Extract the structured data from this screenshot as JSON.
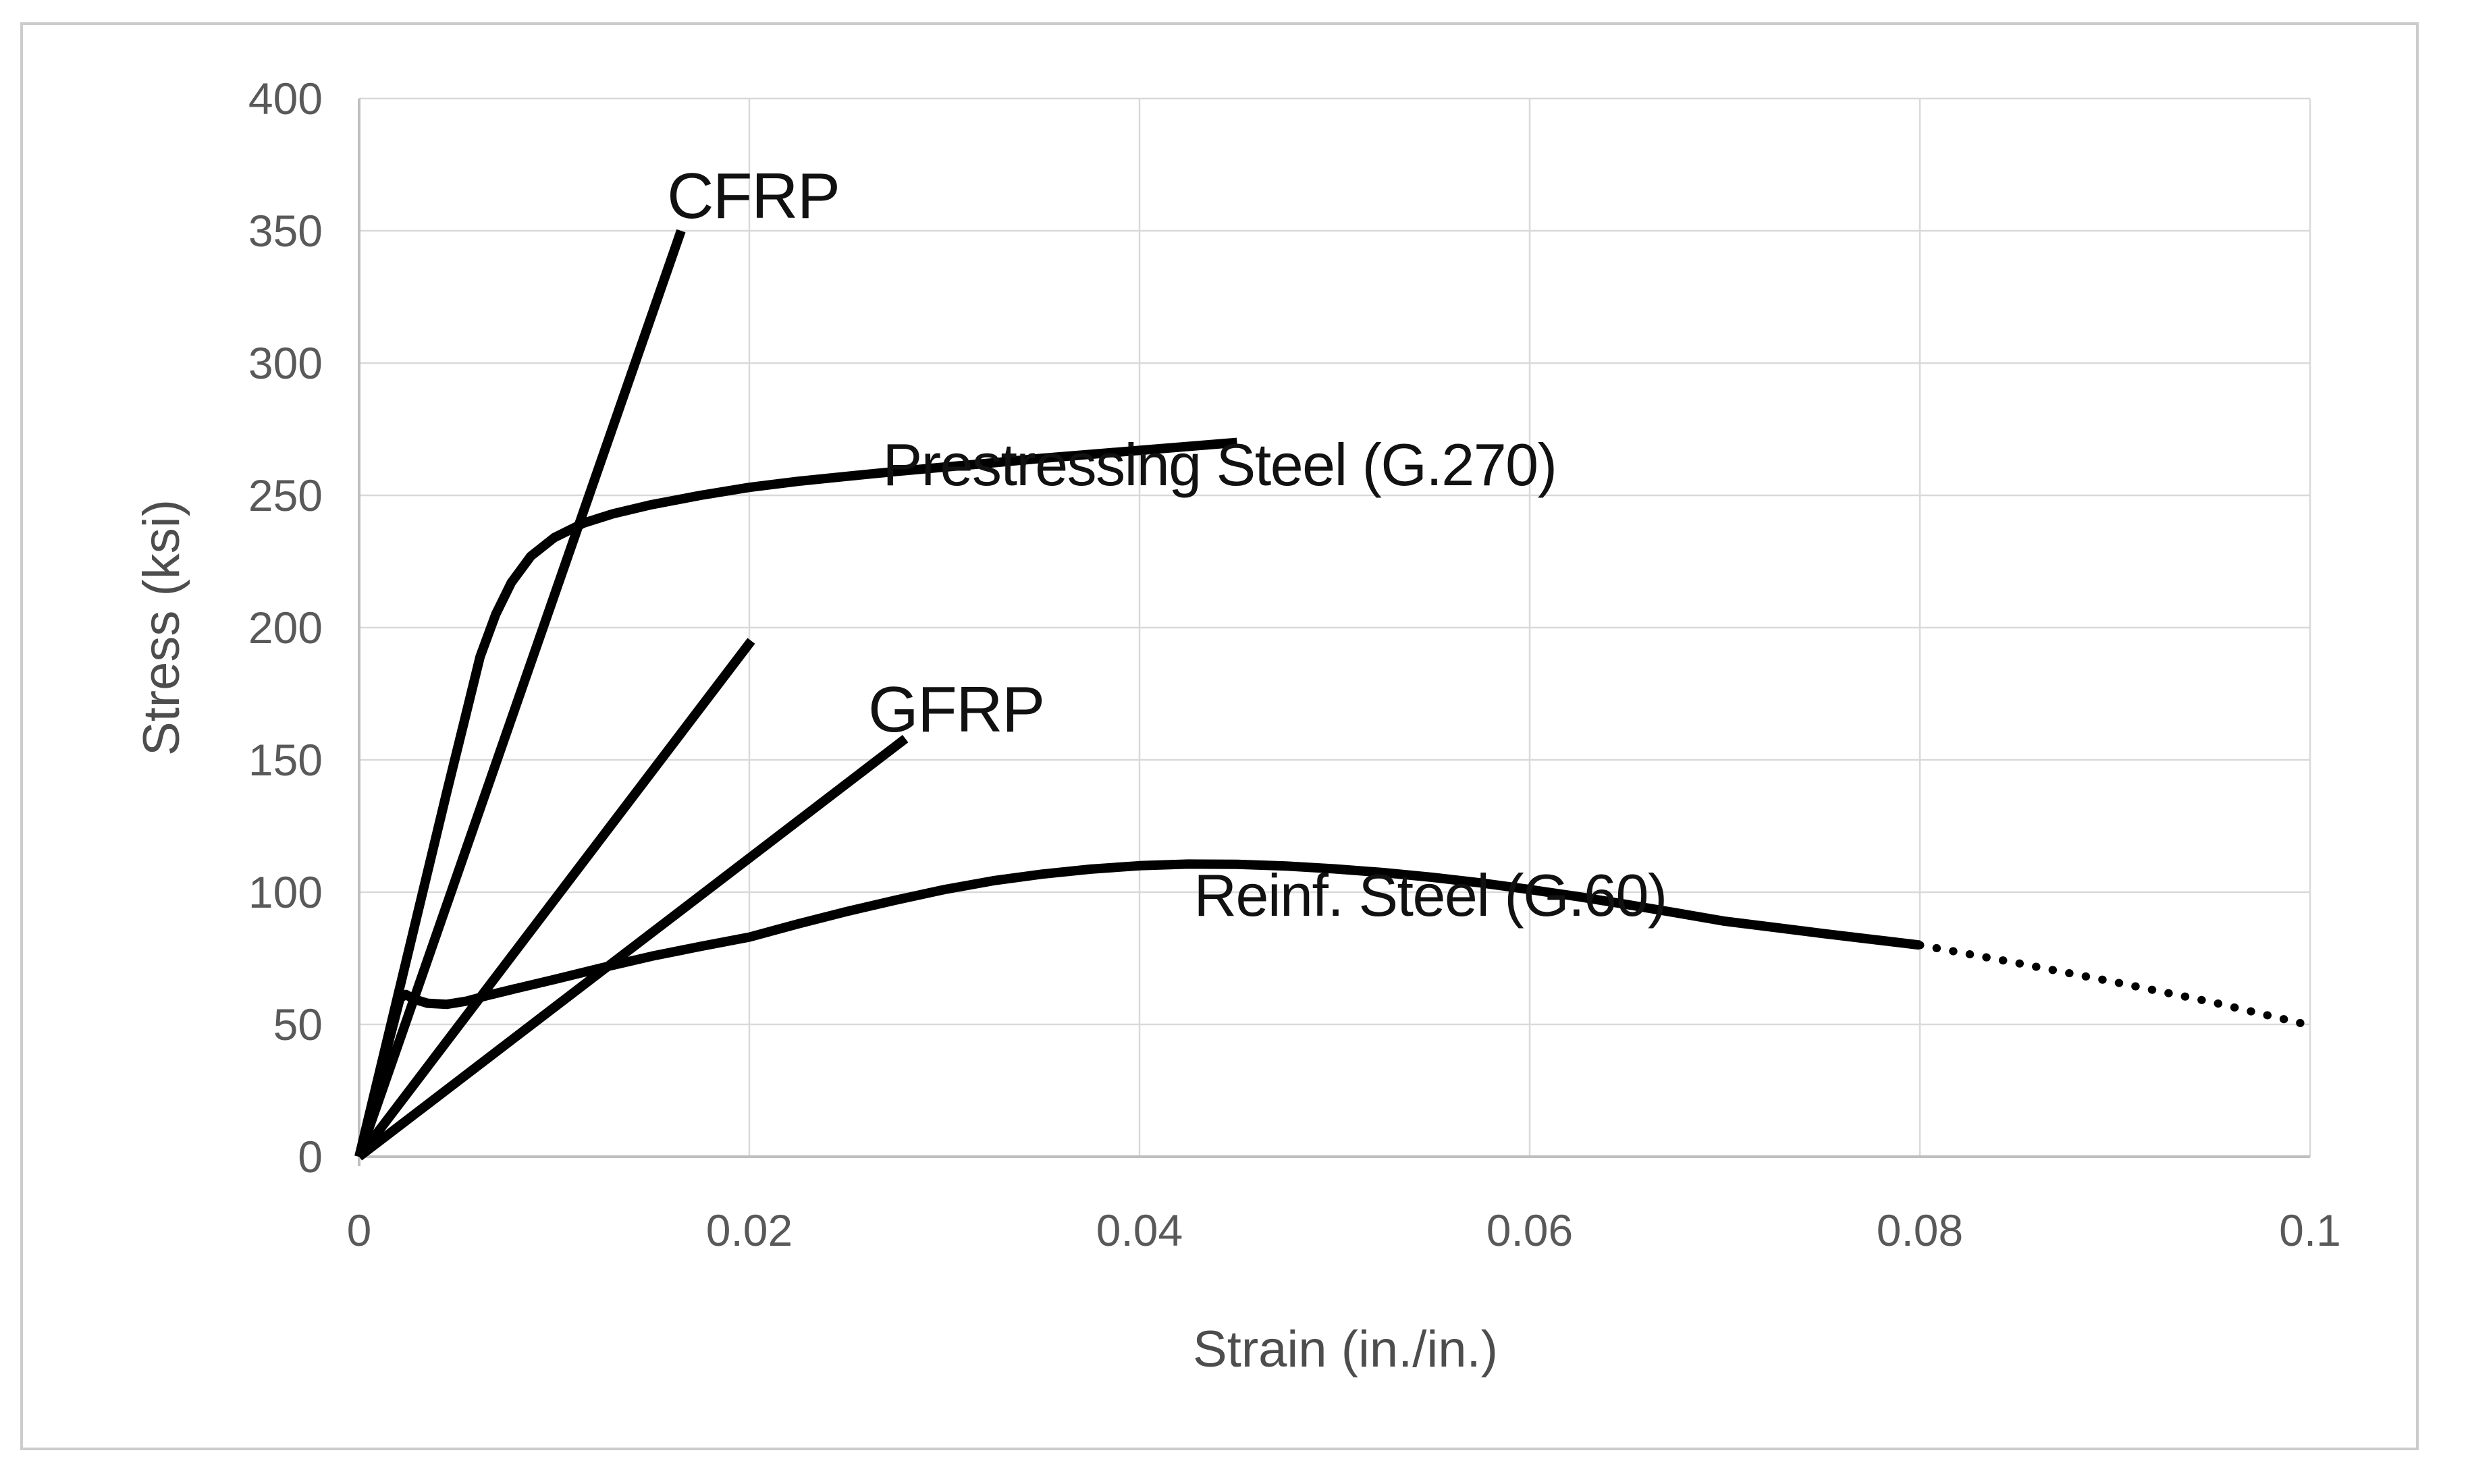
{
  "figure": {
    "background": "#ffffff",
    "frame_color": "#cccccc",
    "grid_color": "#d9d9d9",
    "axis_color": "#bfbfbf",
    "curve_color": "#000000",
    "tick_text_color": "#595959",
    "axis_title_color": "#4d4d4d",
    "annotation_text_color": "#111111"
  },
  "chart_data": {
    "type": "line",
    "title": "",
    "xlabel": "Strain (in./in.)",
    "ylabel": "Stress (ksi)",
    "xlim": [
      0,
      0.1
    ],
    "ylim": [
      0,
      400
    ],
    "x_ticks": [
      0,
      0.02,
      0.04,
      0.06,
      0.08,
      0.1
    ],
    "x_tick_labels": [
      "0",
      "0.02",
      "0.04",
      "0.06",
      "0.08",
      "0.1"
    ],
    "y_ticks": [
      0,
      50,
      100,
      150,
      200,
      250,
      300,
      350,
      400
    ],
    "y_tick_labels": [
      "0",
      "50",
      "100",
      "150",
      "200",
      "250",
      "300",
      "350",
      "400"
    ],
    "grid": true,
    "legend_position": "none (series labeled by on-chart annotations)",
    "series": [
      {
        "id": "cfrp",
        "name": "CFRP",
        "line": "solid",
        "points": [
          [
            0,
            0
          ],
          [
            0.0165,
            350
          ]
        ]
      },
      {
        "id": "frp-unlabeled",
        "name": "",
        "line": "solid",
        "points": [
          [
            0,
            0
          ],
          [
            0.0201,
            195
          ]
        ]
      },
      {
        "id": "gfrp",
        "name": "GFRP",
        "line": "solid",
        "points": [
          [
            0,
            0
          ],
          [
            0.028,
            158
          ]
        ]
      },
      {
        "id": "prestressing-steel",
        "name": "Prestressing Steel (G.270)",
        "line": "solid",
        "points": [
          [
            0,
            0
          ],
          [
            0.0045,
            138
          ],
          [
            0.0055,
            168
          ],
          [
            0.0062,
            189
          ],
          [
            0.007,
            205
          ],
          [
            0.0078,
            217
          ],
          [
            0.0088,
            227
          ],
          [
            0.01,
            234
          ],
          [
            0.0115,
            239.5
          ],
          [
            0.013,
            243
          ],
          [
            0.015,
            246.5
          ],
          [
            0.0175,
            250
          ],
          [
            0.02,
            253
          ],
          [
            0.0225,
            255.3
          ],
          [
            0.025,
            257.2
          ],
          [
            0.0275,
            259
          ],
          [
            0.03,
            260.7
          ],
          [
            0.0325,
            262.3
          ],
          [
            0.035,
            264
          ],
          [
            0.0375,
            265.5
          ],
          [
            0.04,
            267
          ],
          [
            0.0425,
            268.5
          ],
          [
            0.045,
            270
          ]
        ]
      },
      {
        "id": "reinf-steel",
        "name": "Reinf. Steel (G.60)",
        "line": "solid",
        "points": [
          [
            0,
            0
          ],
          [
            0.0021,
            60
          ],
          [
            0.0024,
            61.3
          ],
          [
            0.0028,
            59.6
          ],
          [
            0.0035,
            58
          ],
          [
            0.0045,
            57.6
          ],
          [
            0.0055,
            58.8
          ],
          [
            0.0065,
            60.8
          ],
          [
            0.008,
            63.5
          ],
          [
            0.01,
            67
          ],
          [
            0.0125,
            71.5
          ],
          [
            0.015,
            75.8
          ],
          [
            0.0175,
            79.5
          ],
          [
            0.02,
            83
          ],
          [
            0.0225,
            88
          ],
          [
            0.025,
            92.7
          ],
          [
            0.0275,
            97
          ],
          [
            0.03,
            101
          ],
          [
            0.0325,
            104.3
          ],
          [
            0.035,
            106.8
          ],
          [
            0.0375,
            108.7
          ],
          [
            0.04,
            110
          ],
          [
            0.0425,
            110.6
          ],
          [
            0.045,
            110.5
          ],
          [
            0.0475,
            109.9
          ],
          [
            0.05,
            108.8
          ],
          [
            0.0525,
            107.4
          ],
          [
            0.055,
            105.6
          ],
          [
            0.0575,
            103.5
          ],
          [
            0.06,
            101
          ],
          [
            0.0625,
            98.3
          ],
          [
            0.065,
            95.3
          ],
          [
            0.0675,
            92.2
          ],
          [
            0.07,
            89
          ],
          [
            0.0725,
            86.7
          ],
          [
            0.075,
            84.4
          ],
          [
            0.0775,
            82.2
          ],
          [
            0.08,
            80
          ]
        ]
      },
      {
        "id": "reinf-steel-projection",
        "name": "Reinf. Steel (G.60) dotted continuation",
        "line": "dotted",
        "points": [
          [
            0.08,
            80
          ],
          [
            0.085,
            73.2
          ],
          [
            0.09,
            66
          ],
          [
            0.095,
            58.4
          ],
          [
            0.0995,
            50.5
          ]
        ]
      }
    ],
    "annotations": [
      {
        "id": "cfrp",
        "text": "CFRP",
        "x": 0.0202,
        "y": 363
      },
      {
        "id": "prestressing-steel",
        "text": "Prestressing Steel (G.270)",
        "x": 0.0441,
        "y": 261.5
      },
      {
        "id": "gfrp",
        "text": "GFRP",
        "x": 0.0306,
        "y": 169
      },
      {
        "id": "reinf-steel",
        "text": "Reinf. Steel (G.60)",
        "x": 0.0549,
        "y": 98.8
      }
    ]
  }
}
